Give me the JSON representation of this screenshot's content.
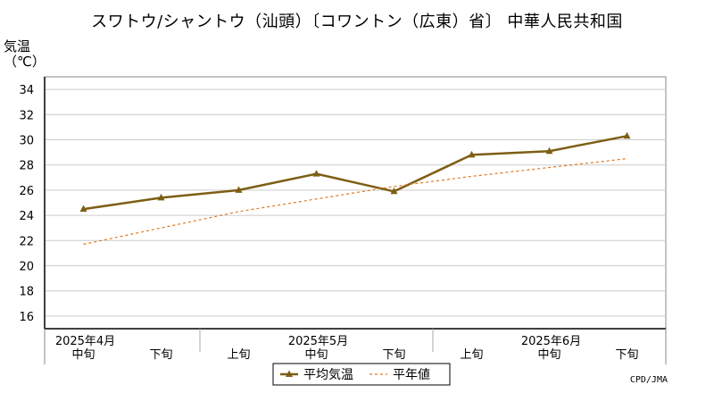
{
  "chart_data": {
    "type": "line",
    "title": "スワトウ/シャントウ（汕頭）〔コワントン（広東）省〕 中華人民共和国",
    "ylabel": "気温（℃）",
    "ylim": [
      15,
      35
    ],
    "yticks": [
      16,
      18,
      20,
      22,
      24,
      26,
      28,
      30,
      32,
      34
    ],
    "grid": true,
    "legend_position": "bottom-center",
    "categories": [
      "中旬",
      "下旬",
      "上旬",
      "中旬",
      "下旬",
      "上旬",
      "中旬",
      "下旬"
    ],
    "month_labels": [
      {
        "label": "2025年4月",
        "at": 0
      },
      {
        "label": "2025年5月",
        "at": 3
      },
      {
        "label": "2025年6月",
        "at": 6
      }
    ],
    "month_dividers_after": [
      1,
      4
    ],
    "series": [
      {
        "name": "平均気温",
        "values": [
          24.5,
          25.4,
          26.0,
          27.3,
          25.9,
          28.8,
          29.1,
          30.3
        ],
        "color": "#7d5e14",
        "style": "solid",
        "marker": "triangle"
      },
      {
        "name": "平年値",
        "values": [
          21.7,
          23.0,
          24.3,
          25.3,
          26.3,
          27.1,
          27.8,
          28.5
        ],
        "color": "#e07820",
        "style": "dashed"
      }
    ]
  },
  "credit": "CPD/JMA"
}
